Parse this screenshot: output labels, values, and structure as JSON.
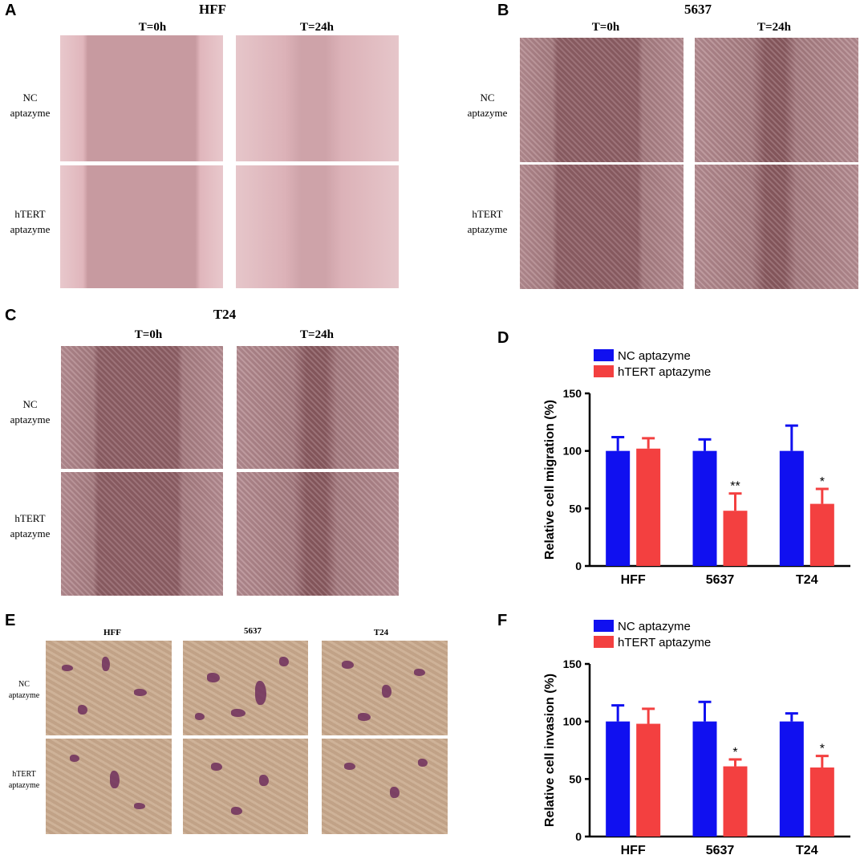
{
  "panels": {
    "A": {
      "letter": "A",
      "title": "HFF",
      "col_labels": [
        "T=0h",
        "T=24h"
      ],
      "row_labels": [
        [
          "NC",
          "aptazyme"
        ],
        [
          "hTERT",
          "aptazyme"
        ]
      ]
    },
    "B": {
      "letter": "B",
      "title": "5637",
      "col_labels": [
        "T=0h",
        "T=24h"
      ],
      "row_labels": [
        [
          "NC",
          "aptazyme"
        ],
        [
          "hTERT",
          "aptazyme"
        ]
      ]
    },
    "C": {
      "letter": "C",
      "title": "T24",
      "col_labels": [
        "T=0h",
        "T=24h"
      ],
      "row_labels": [
        [
          "NC",
          "aptazyme"
        ],
        [
          "hTERT",
          "aptazyme"
        ]
      ]
    },
    "D": {
      "letter": "D"
    },
    "E": {
      "letter": "E",
      "col_labels": [
        "HFF",
        "5637",
        "T24"
      ],
      "row_labels": [
        [
          "NC",
          "aptazyme"
        ],
        [
          "hTERT",
          "aptazyme"
        ]
      ]
    },
    "F": {
      "letter": "F"
    }
  },
  "colors": {
    "nc": "#1010f0",
    "htert": "#f34040",
    "axis": "#000000"
  },
  "chart_data": [
    {
      "panel": "D",
      "type": "bar",
      "categories": [
        "HFF",
        "5637",
        "T24"
      ],
      "ylabel": "Relative cell migration (%)",
      "ylim": [
        0,
        150
      ],
      "yticks": [
        0,
        50,
        100,
        150
      ],
      "legend_position": "top-left",
      "series": [
        {
          "name": "NC aptazyme",
          "values": [
            100,
            100,
            100
          ],
          "errors": [
            12,
            10,
            22
          ]
        },
        {
          "name": "hTERT aptazyme",
          "values": [
            102,
            48,
            54
          ],
          "errors": [
            9,
            15,
            13
          ],
          "significance": [
            "",
            "**",
            "*"
          ]
        }
      ]
    },
    {
      "panel": "F",
      "type": "bar",
      "categories": [
        "HFF",
        "5637",
        "T24"
      ],
      "ylabel": "Relative cell invasion (%)",
      "ylim": [
        0,
        150
      ],
      "yticks": [
        0,
        50,
        100,
        150
      ],
      "legend_position": "top-left",
      "series": [
        {
          "name": "NC aptazyme",
          "values": [
            100,
            100,
            100
          ],
          "errors": [
            14,
            17,
            7
          ]
        },
        {
          "name": "hTERT aptazyme",
          "values": [
            98,
            61,
            60
          ],
          "errors": [
            13,
            6,
            10
          ],
          "significance": [
            "",
            "*",
            "*"
          ]
        }
      ]
    }
  ]
}
